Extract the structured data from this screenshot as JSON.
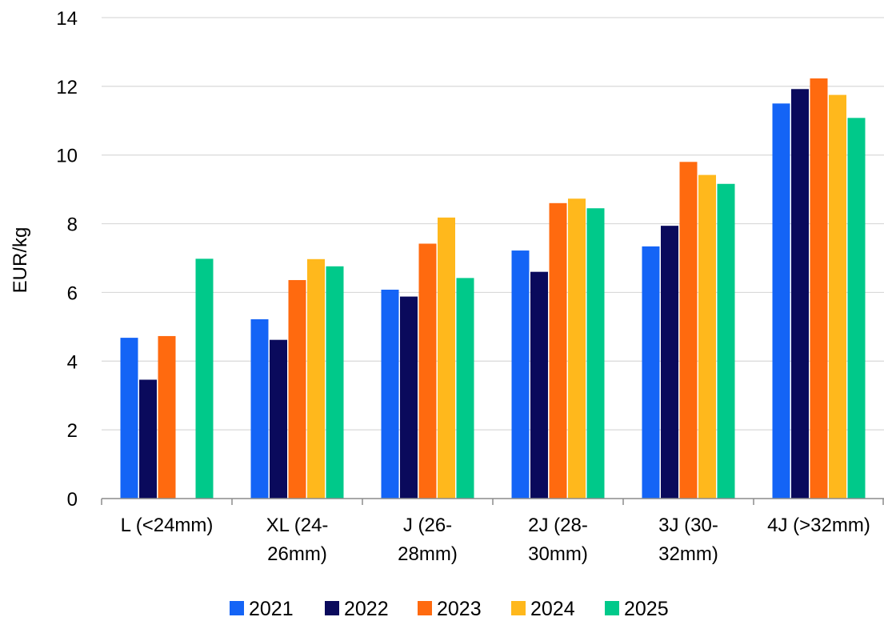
{
  "chart_data": {
    "type": "bar",
    "title": "",
    "xlabel": "",
    "ylabel": "EUR/kg",
    "ylim": [
      0,
      14
    ],
    "yticks": [
      0,
      2,
      4,
      6,
      8,
      10,
      12,
      14
    ],
    "grid": true,
    "legend": "bottom",
    "categories": [
      [
        "L (<24mm)"
      ],
      [
        "XL (24-",
        "26mm)"
      ],
      [
        "J (26-",
        "28mm)"
      ],
      [
        "2J (28-",
        "30mm)"
      ],
      [
        "3J (30-",
        "32mm)"
      ],
      [
        "4J (>32mm)"
      ]
    ],
    "series": [
      {
        "name": "2021",
        "color": "#1464f6",
        "values": [
          4.68,
          5.22,
          6.08,
          7.22,
          7.34,
          11.5
        ]
      },
      {
        "name": "2022",
        "color": "#0a0a5c",
        "values": [
          3.46,
          4.62,
          5.88,
          6.6,
          7.94,
          11.92
        ]
      },
      {
        "name": "2023",
        "color": "#ff6a0f",
        "values": [
          4.73,
          6.36,
          7.42,
          8.6,
          9.8,
          12.23
        ]
      },
      {
        "name": "2024",
        "color": "#ffb81c",
        "values": [
          null,
          6.97,
          8.18,
          8.73,
          9.42,
          11.75
        ]
      },
      {
        "name": "2025",
        "color": "#00c98a",
        "values": [
          6.98,
          6.76,
          6.42,
          8.45,
          9.16,
          11.08
        ]
      }
    ]
  }
}
